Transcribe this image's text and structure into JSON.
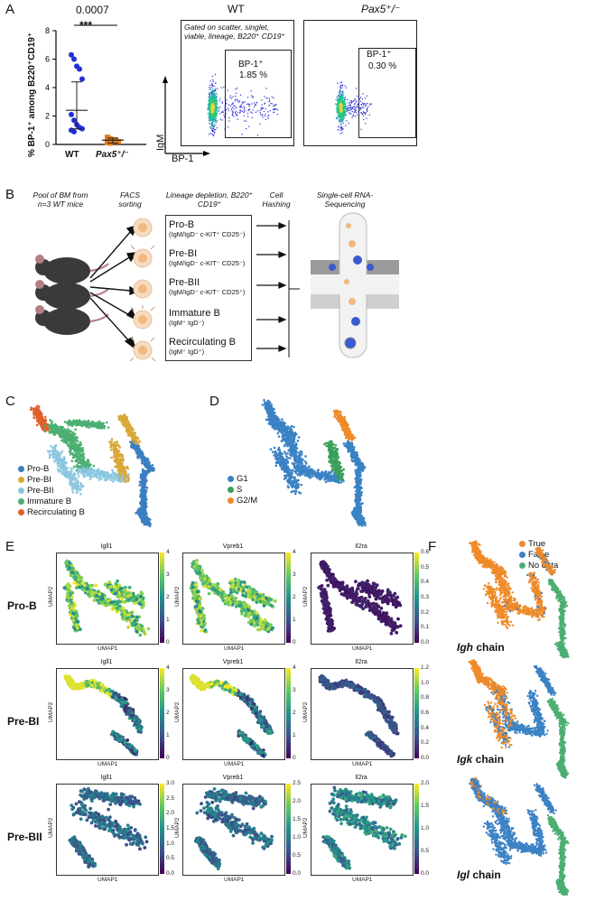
{
  "panels": {
    "A": "A",
    "B": "B",
    "C": "C",
    "D": "D",
    "E": "E",
    "F": "F"
  },
  "panelA": {
    "pvalue": "0.0007",
    "stars": "***",
    "ylabel": "% BP-1⁺ among B220⁺CD19⁺",
    "yticks": [
      "0",
      "2",
      "4",
      "6",
      "8"
    ],
    "xticks": [
      "WT",
      "Pax5⁺/⁻"
    ],
    "colors": {
      "wt": "#1f2fd6",
      "pax5": "#e87a1a"
    },
    "flow": {
      "wt_title": "WT",
      "pax5_title": "Pax5⁺/⁻",
      "gate_note": "Gated on scatter, singlet, viable, lineage, B220⁺ CD19⁺",
      "wt_gate_label": "BP-1⁺",
      "wt_gate_value": "1.85 %",
      "pax5_gate_label": "BP-1⁺",
      "pax5_gate_value": "0.30 %",
      "ylabel": "IgM",
      "xlabel": "BP-1"
    }
  },
  "chart_data": {
    "type": "scatter",
    "title": "",
    "ylabel": "% BP-1⁺ among B220⁺CD19⁺",
    "ylim": [
      0,
      8
    ],
    "categories": [
      "WT",
      "Pax5⁺/⁻"
    ],
    "pvalue": "0.0007",
    "significance": "***",
    "series": [
      {
        "name": "WT",
        "values": [
          6.3,
          6.0,
          5.5,
          5.3,
          4.6,
          2.1,
          1.7,
          1.4,
          1.2,
          1.1,
          1.0,
          0.9
        ],
        "mean": 2.4,
        "sd_low": 1.1,
        "sd_high": 4.4
      },
      {
        "name": "Pax5⁺/⁻",
        "values": [
          0.5,
          0.4,
          0.3,
          0.3,
          0.2,
          0.15,
          0.1
        ],
        "mean": 0.3,
        "sd_low": 0.1,
        "sd_high": 0.45
      }
    ]
  },
  "panelB": {
    "col1": "Pool of BM from n=3 WT mice",
    "col2": "FACS sorting",
    "col3": "Lineage depletion, B220⁺ CD19⁺",
    "col4": "Cell Hashing",
    "col5": "Single-cell RNA-Sequencing",
    "populations": [
      {
        "name": "Pro-B",
        "markers": "(IgM/IgD⁻ c-KIT⁺ CD25⁻)"
      },
      {
        "name": "Pre-BI",
        "markers": "(IgM/IgD⁻ c-KIT⁻ CD25⁻)"
      },
      {
        "name": "Pre-BII",
        "markers": "(IgM/IgD⁻ c-KIT⁻ CD25⁺)"
      },
      {
        "name": "Immature B",
        "markers": "(IgM⁺ IgD⁻)"
      },
      {
        "name": "Recirculating B",
        "markers": "(IgM⁺ IgD⁺)"
      }
    ]
  },
  "panelC": {
    "legend": [
      {
        "label": "Pro-B",
        "color": "#3b7fc0"
      },
      {
        "label": "Pre-BI",
        "color": "#d8a83a"
      },
      {
        "label": "Pre-BII",
        "color": "#8cc7e0"
      },
      {
        "label": "Immature B",
        "color": "#4caf72"
      },
      {
        "label": "Recirculating B",
        "color": "#e0602a"
      }
    ]
  },
  "panelD": {
    "legend": [
      {
        "label": "G1",
        "color": "#3b82c4"
      },
      {
        "label": "S",
        "color": "#3aa05a"
      },
      {
        "label": "G2/M",
        "color": "#f08a28"
      }
    ]
  },
  "panelE": {
    "rows": [
      {
        "label": "Pro-B",
        "genes": [
          "Igll1",
          "Vpreb1",
          "Il2ra"
        ],
        "scales": [
          [
            "4",
            "3",
            "2",
            "1",
            "0"
          ],
          [
            "4",
            "3",
            "2",
            "1",
            "0"
          ],
          [
            "0.6",
            "0.5",
            "0.4",
            "0.3",
            "0.2",
            "0.1",
            "0.0"
          ]
        ]
      },
      {
        "label": "Pre-BI",
        "genes": [
          "Igll1",
          "Vpreb1",
          "Il2ra"
        ],
        "scales": [
          [
            "4",
            "3",
            "2",
            "1",
            "0"
          ],
          [
            "4",
            "3",
            "2",
            "1",
            "0"
          ],
          [
            "1.2",
            "1.0",
            "0.8",
            "0.6",
            "0.4",
            "0.2",
            "0.0"
          ]
        ]
      },
      {
        "label": "Pre-BII",
        "genes": [
          "Igll1",
          "Vpreb1",
          "Il2ra"
        ],
        "scales": [
          [
            "3.0",
            "2.5",
            "2.0",
            "1.5",
            "1.0",
            "0.5",
            "0.0"
          ],
          [
            "2.5",
            "2.0",
            "1.5",
            "1.0",
            "0.5",
            "0.0"
          ],
          [
            "2.0",
            "1.5",
            "1.0",
            "0.5",
            "0.0"
          ]
        ]
      }
    ],
    "xaxis": "UMAP1",
    "yaxis": "UMAP2"
  },
  "panelF": {
    "legend": [
      {
        "label": "True",
        "color": "#f08a28"
      },
      {
        "label": "False",
        "color": "#3b82c4"
      },
      {
        "label": "No data",
        "color": "#4caf72"
      }
    ],
    "chains": [
      {
        "gene": "Igh",
        "suffix": " chain"
      },
      {
        "gene": "Igk",
        "suffix": " chain"
      },
      {
        "gene": "Igl",
        "suffix": " chain"
      }
    ]
  }
}
